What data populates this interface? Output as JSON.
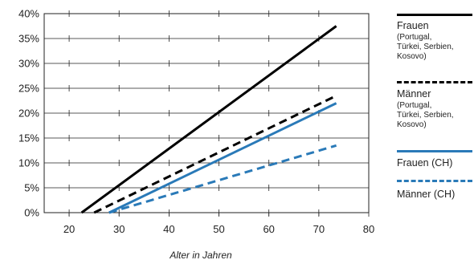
{
  "chart_data": {
    "type": "line",
    "title": "",
    "xlabel": "Alter in Jahren",
    "ylabel": "",
    "xlim": [
      15,
      80
    ],
    "ylim": [
      0,
      40
    ],
    "xticks": [
      20,
      30,
      40,
      50,
      60,
      70,
      80
    ],
    "yticks": [
      0,
      5,
      10,
      15,
      20,
      25,
      30,
      35,
      40
    ],
    "yformat": "percent",
    "grid": "horizontal gridlines with tick marks",
    "legend_position": "right",
    "series": [
      {
        "name": "Frauen",
        "note": "(Portugal,\nTürkei, Serbien,\nKosovo)",
        "color": "#000000",
        "style": "solid",
        "points": [
          [
            22.5,
            0
          ],
          [
            73.5,
            37.5
          ]
        ]
      },
      {
        "name": "Männer",
        "note": "(Portugal,\nTürkei, Serbien,\nKosovo)",
        "color": "#000000",
        "style": "dashed",
        "points": [
          [
            25,
            0
          ],
          [
            73.5,
            23.5
          ]
        ]
      },
      {
        "name": "Frauen (CH)",
        "note": "",
        "color": "#2a7ab8",
        "style": "solid",
        "points": [
          [
            28,
            0
          ],
          [
            73.5,
            22
          ]
        ]
      },
      {
        "name": "Männer (CH)",
        "note": "",
        "color": "#2a7ab8",
        "style": "dashed",
        "points": [
          [
            28,
            0
          ],
          [
            73.5,
            13.5
          ]
        ]
      }
    ]
  }
}
